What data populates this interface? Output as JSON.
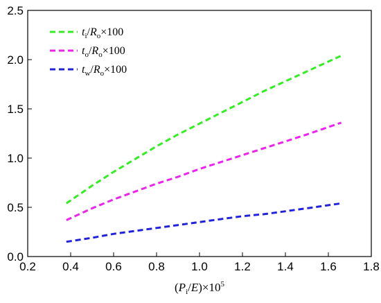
{
  "chart_data": {
    "type": "line",
    "xlabel": {
      "open": "(",
      "var": "P",
      "sub": "i",
      "slash": "/",
      "var2": "E",
      "close": ")×10",
      "sup": "5"
    },
    "ylabel": "",
    "xlim": [
      0.2,
      1.8
    ],
    "ylim": [
      0.0,
      2.5
    ],
    "x_ticks": [
      "0.2",
      "0.4",
      "0.6",
      "0.8",
      "1.0",
      "1.2",
      "1.4",
      "1.6",
      "1.8"
    ],
    "y_ticks": [
      "0.0",
      "0.5",
      "1.0",
      "1.5",
      "2.0",
      "2.5"
    ],
    "legend_position": "top-left",
    "grid": false,
    "series": [
      {
        "label": {
          "var": "t",
          "sub": "i",
          "slash": "/",
          "var2": "R",
          "sub2": "o",
          "tail": "×100"
        },
        "color": "#33ee22",
        "style": "dashed",
        "x": [
          0.38,
          0.5,
          0.6,
          0.7,
          0.8,
          0.9,
          1.0,
          1.1,
          1.2,
          1.3,
          1.4,
          1.5,
          1.66
        ],
        "y": [
          0.54,
          0.72,
          0.86,
          0.99,
          1.12,
          1.24,
          1.35,
          1.46,
          1.57,
          1.68,
          1.78,
          1.88,
          2.04
        ]
      },
      {
        "label": {
          "var": "t",
          "sub": "o",
          "slash": "/",
          "var2": "R",
          "sub2": "o",
          "tail": "×100"
        },
        "color": "#ee22ee",
        "style": "dashed",
        "x": [
          0.38,
          0.5,
          0.6,
          0.7,
          0.8,
          0.9,
          1.0,
          1.1,
          1.2,
          1.3,
          1.4,
          1.5,
          1.66
        ],
        "y": [
          0.37,
          0.49,
          0.58,
          0.66,
          0.74,
          0.81,
          0.89,
          0.96,
          1.03,
          1.1,
          1.17,
          1.24,
          1.36
        ]
      },
      {
        "label": {
          "var": "t",
          "sub": "w",
          "slash": "/",
          "var2": "R",
          "sub2": "o",
          "tail": "×100"
        },
        "color": "#2222dd",
        "style": "dashed",
        "x": [
          0.38,
          0.5,
          0.6,
          0.7,
          0.8,
          0.9,
          1.0,
          1.1,
          1.2,
          1.3,
          1.4,
          1.5,
          1.66
        ],
        "y": [
          0.15,
          0.19,
          0.23,
          0.26,
          0.29,
          0.32,
          0.35,
          0.38,
          0.41,
          0.43,
          0.46,
          0.49,
          0.54
        ]
      }
    ]
  }
}
